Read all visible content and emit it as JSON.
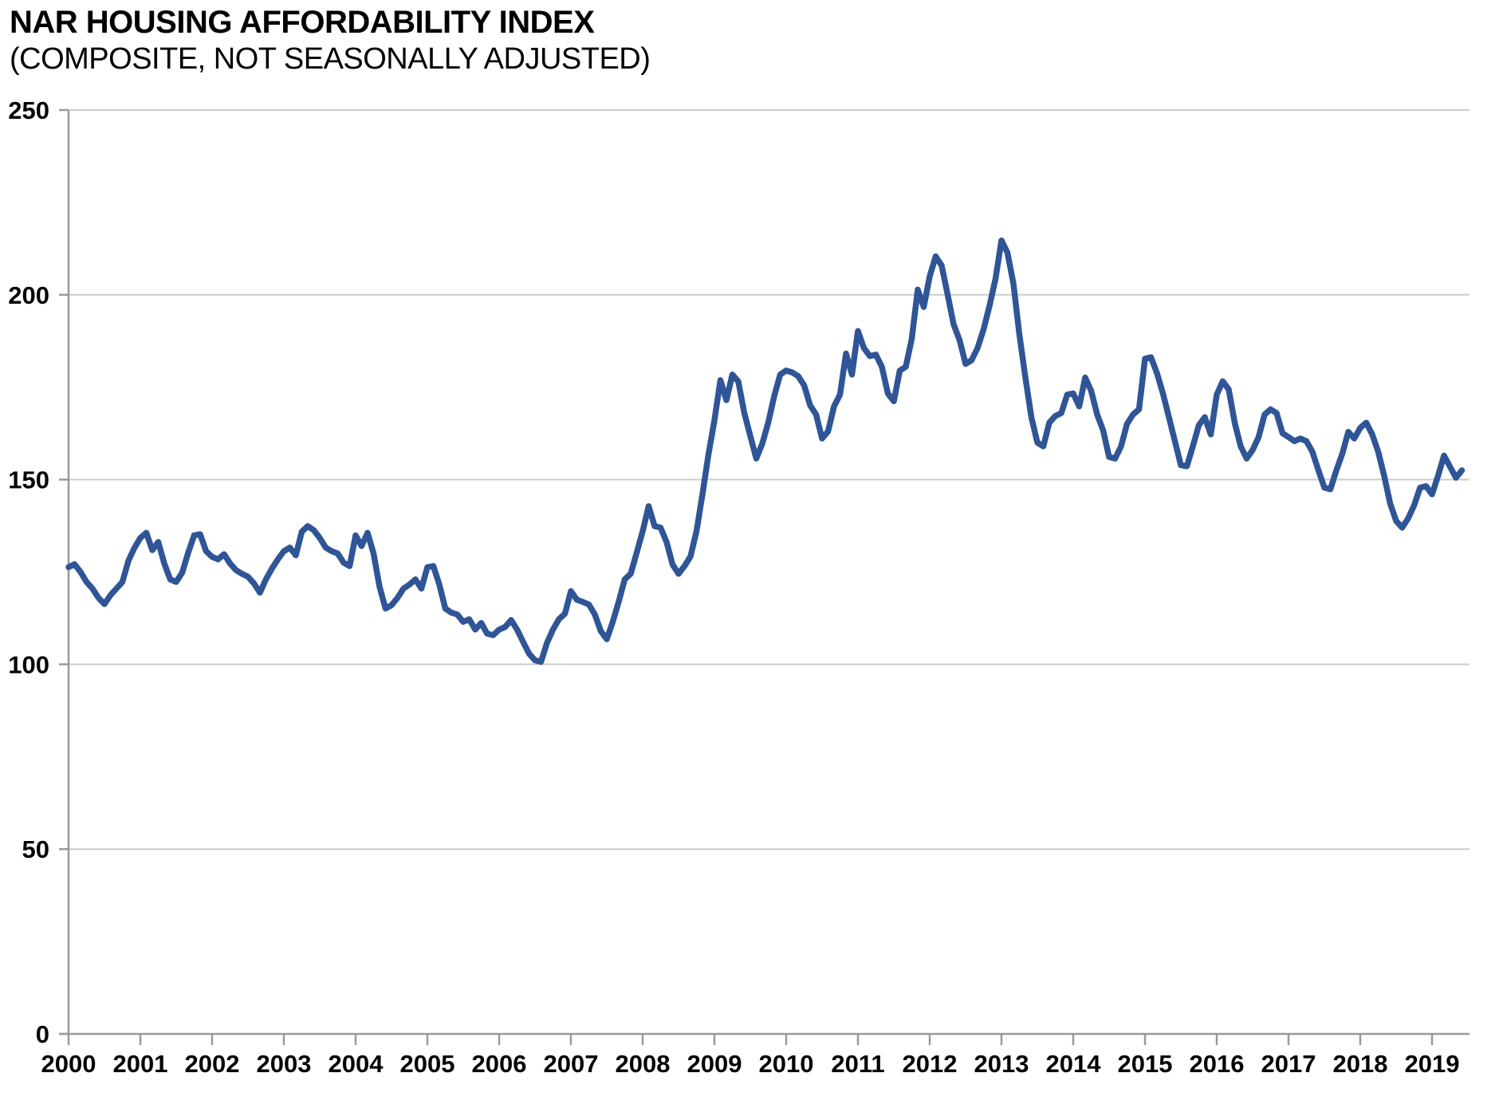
{
  "header": {
    "title": "NAR HOUSING AFFORDABILITY INDEX",
    "subtitle": "(COMPOSITE, NOT SEASONALLY ADJUSTED)"
  },
  "chart_data": {
    "type": "line",
    "title": "NAR HOUSING AFFORDABILITY INDEX",
    "subtitle": "(COMPOSITE, NOT SEASONALLY ADJUSTED)",
    "xlabel": "",
    "ylabel": "",
    "frequency": "monthly",
    "start": "2000-01",
    "end": "2019-06",
    "ylim": [
      0,
      250
    ],
    "y_ticks": [
      0,
      50,
      100,
      150,
      200,
      250
    ],
    "x_tick_labels": [
      "2000",
      "2001",
      "2002",
      "2003",
      "2004",
      "2005",
      "2006",
      "2007",
      "2008",
      "2009",
      "2010",
      "2011",
      "2012",
      "2013",
      "2014",
      "2015",
      "2016",
      "2017",
      "2018",
      "2019"
    ],
    "grid": "horizontal",
    "legend": "none",
    "colors": {
      "line": "#2F5597",
      "gridline": "#CCCCCC",
      "axis": "#999999",
      "text": "#000000",
      "background": "#FFFFFF"
    },
    "series": [
      {
        "name": "Housing Affordability Index (Composite, Not Seasonally Adjusted)",
        "values": [
          126.3,
          127.1,
          125.0,
          122.3,
          120.5,
          118.0,
          116.3,
          118.7,
          120.5,
          122.3,
          128.0,
          131.5,
          134.2,
          135.6,
          130.9,
          133.1,
          127.3,
          123.0,
          122.3,
          124.8,
          130.2,
          134.9,
          135.2,
          130.6,
          129.1,
          128.4,
          129.8,
          127.3,
          125.5,
          124.5,
          123.7,
          121.9,
          119.4,
          123.0,
          125.9,
          128.4,
          130.6,
          131.6,
          129.5,
          135.9,
          137.4,
          136.3,
          134.2,
          131.6,
          130.6,
          130.0,
          127.5,
          126.6,
          134.9,
          132.0,
          135.6,
          130.0,
          121.0,
          115.1,
          116.0,
          118.0,
          120.5,
          121.6,
          123.0,
          120.5,
          126.3,
          126.6,
          121.6,
          115.1,
          114.0,
          113.5,
          111.5,
          112.2,
          109.4,
          111.2,
          108.3,
          107.9,
          109.4,
          110.1,
          112.0,
          109.4,
          106.1,
          102.9,
          101.1,
          100.7,
          105.8,
          109.4,
          112.2,
          113.7,
          119.8,
          117.5,
          116.9,
          116.2,
          113.5,
          109.0,
          106.8,
          111.5,
          117.0,
          123.0,
          124.5,
          130.2,
          136.0,
          142.8,
          137.4,
          137.0,
          133.1,
          127.0,
          124.5,
          126.6,
          129.2,
          136.0,
          146.0,
          156.8,
          166.0,
          176.9,
          171.5,
          178.4,
          176.5,
          168.0,
          161.8,
          155.7,
          159.7,
          165.4,
          172.6,
          178.4,
          179.5,
          179.0,
          178.0,
          175.5,
          170.1,
          167.6,
          161.1,
          163.0,
          169.8,
          173.0,
          184.1,
          178.4,
          190.2,
          185.6,
          183.4,
          183.8,
          180.5,
          173.3,
          171.2,
          179.5,
          180.5,
          188.1,
          201.4,
          196.7,
          205.0,
          210.4,
          207.9,
          200.0,
          192.0,
          187.7,
          181.3,
          182.3,
          185.6,
          190.6,
          197.0,
          204.3,
          214.7,
          211.4,
          203.0,
          189.2,
          177.6,
          166.9,
          160.0,
          159.0,
          165.4,
          167.2,
          168.0,
          173.0,
          173.3,
          169.8,
          177.6,
          174.0,
          167.6,
          163.3,
          156.1,
          155.7,
          159.0,
          165.1,
          167.6,
          169.0,
          182.7,
          183.1,
          178.8,
          173.3,
          166.9,
          160.4,
          153.9,
          153.6,
          159.0,
          164.7,
          166.9,
          162.2,
          173.0,
          176.6,
          174.4,
          165.4,
          159.0,
          155.7,
          158.0,
          161.5,
          167.6,
          169.0,
          168.0,
          162.5,
          161.5,
          160.4,
          161.1,
          160.4,
          157.5,
          152.5,
          147.8,
          147.4,
          152.5,
          157.0,
          162.9,
          161.1,
          164.0,
          165.4,
          162.2,
          157.5,
          151.0,
          143.5,
          138.8,
          137.0,
          139.5,
          143.0,
          147.8,
          148.2,
          146.0,
          151.0,
          156.5,
          153.5,
          150.5,
          152.5
        ]
      }
    ]
  }
}
